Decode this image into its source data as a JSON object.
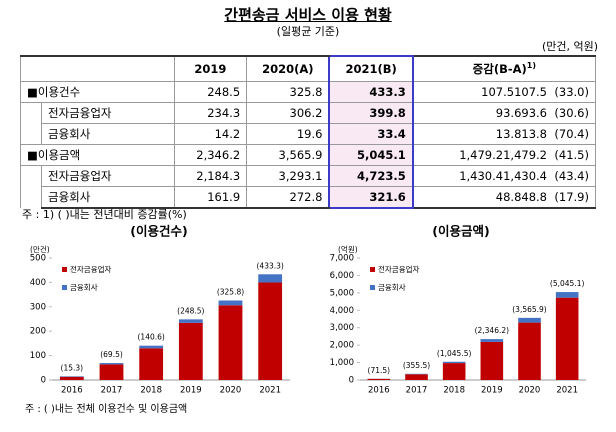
{
  "header": {
    "title": "간편송금 서비스 이용 현황",
    "subtitle": "(일평균 기준)",
    "unit": "(만건, 억원)"
  },
  "table": {
    "columns": [
      "2019",
      "2020(A)",
      "2021(B)",
      "증감(B-A)"
    ],
    "column_sup": "1)",
    "rows": [
      [
        "■이용건수",
        "248.5",
        "325.8",
        "433.3",
        "107.5",
        "(33.0)"
      ],
      [
        "전자금융업자",
        "234.3",
        "306.2",
        "399.8",
        "93.6",
        "(30.6)"
      ],
      [
        "금융회사",
        "14.2",
        "19.6",
        "33.4",
        "13.8",
        "(70.4)"
      ],
      [
        "■이용금액",
        "2,346.2",
        "3,565.9",
        "5,045.1",
        "1,479.2",
        "(41.5)"
      ],
      [
        "전자금융업자",
        "2,184.3",
        "3,293.1",
        "4,723.5",
        "1,430.4",
        "(43.4)"
      ],
      [
        "금융회사",
        "161.9",
        "272.8",
        "321.6",
        "48.8",
        "(17.9)"
      ]
    ],
    "note": "주 : 1) ( )내는 전년대비 증감률(%)"
  },
  "chart_data": [
    {
      "type": "bar",
      "stacked": true,
      "title": "(이용건수)",
      "y_label": "(만건)",
      "categories": [
        "2016",
        "2017",
        "2018",
        "2019",
        "2020",
        "2021"
      ],
      "series": [
        {
          "name": "전자금융업자",
          "color": "#c00000",
          "values": [
            13,
            64,
            130,
            234.3,
            306.2,
            399.8
          ]
        },
        {
          "name": "금융회사",
          "color": "#4472c4",
          "values": [
            2.3,
            5.5,
            10.6,
            14.2,
            19.6,
            33.4
          ]
        }
      ],
      "totals": {
        "values": [
          15.3,
          69.5,
          140.6,
          248.5,
          325.8,
          433.3
        ],
        "value_labels": [
          "(15.3)",
          "(69.5)",
          "(140.6)",
          "(248.5)",
          "(325.8)",
          "(433.3)"
        ]
      },
      "ylim": [
        0,
        500
      ],
      "yticks": [
        0,
        100,
        200,
        300,
        400,
        500
      ]
    },
    {
      "type": "bar",
      "stacked": true,
      "title": "(이용금액)",
      "y_label": "(억원)",
      "categories": [
        "2016",
        "2017",
        "2018",
        "2019",
        "2020",
        "2021"
      ],
      "series": [
        {
          "name": "전자금융업자",
          "color": "#c00000",
          "values": [
            65,
            330,
            970,
            2184.3,
            3293.1,
            4723.5
          ]
        },
        {
          "name": "금융회사",
          "color": "#4472c4",
          "values": [
            6.5,
            25.5,
            75.5,
            161.9,
            272.8,
            321.6
          ]
        }
      ],
      "totals": {
        "values": [
          71.5,
          355.5,
          1045.5,
          2346.2,
          3565.9,
          5045.1
        ],
        "value_labels": [
          "(71.5)",
          "(355.5)",
          "(1,045.5)",
          "(2,346.2)",
          "(3,565.9)",
          "(5,045.1)"
        ]
      },
      "ylim": [
        0,
        7000
      ],
      "yticks": [
        0,
        {
          "value": 1000,
          "label": "1,000"
        },
        {
          "value": 2000,
          "label": "2,000"
        },
        {
          "value": 3000,
          "label": "3,000"
        },
        {
          "value": 4000,
          "label": "4,000"
        },
        {
          "value": 5000,
          "label": "5,000"
        },
        {
          "value": 6000,
          "label": "6,000"
        },
        {
          "value": 7000,
          "label": "7,000"
        }
      ]
    }
  ],
  "chart_note": "주 : ( )내는 전체 이용건수 및 이용금액"
}
